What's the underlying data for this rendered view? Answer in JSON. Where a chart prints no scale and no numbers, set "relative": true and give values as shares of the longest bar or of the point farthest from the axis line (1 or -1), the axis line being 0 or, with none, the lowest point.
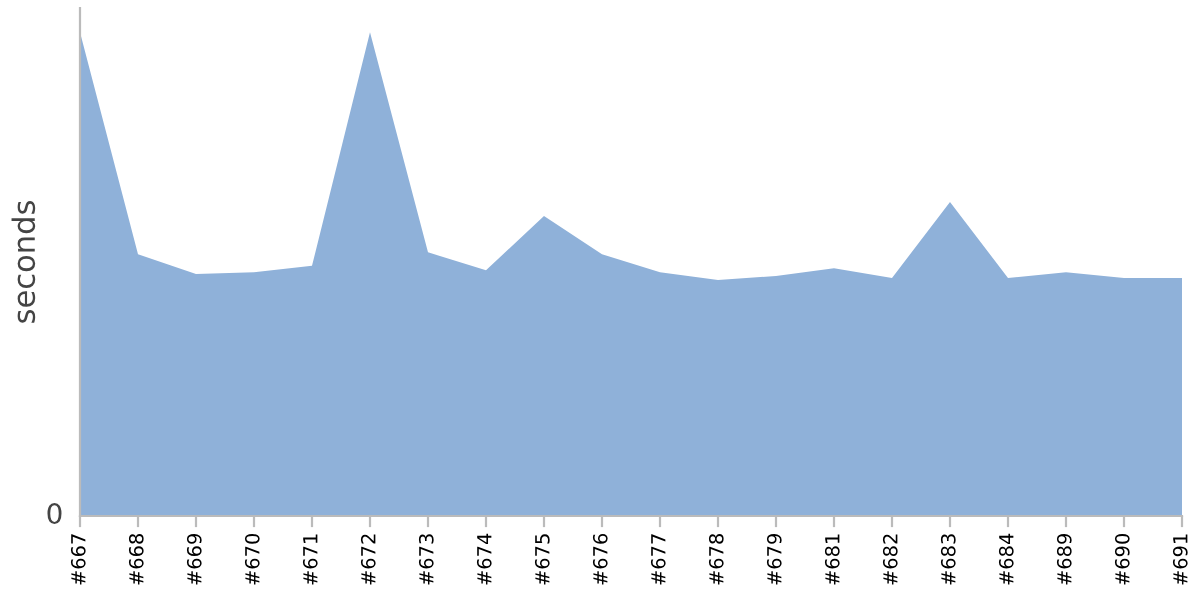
{
  "chart_data": {
    "type": "area",
    "relative": true,
    "ylabel": "seconds",
    "color": "#8fb1d9",
    "annotations": [
      "0"
    ],
    "grid": false,
    "legend": false,
    "categories": [
      "#667",
      "#668",
      "#669",
      "#670",
      "#671",
      "#672",
      "#673",
      "#674",
      "#675",
      "#676",
      "#677",
      "#678",
      "#679",
      "#681",
      "#682",
      "#683",
      "#684",
      "#689",
      "#690",
      "#691"
    ],
    "values": [
      1.0,
      0.541,
      0.5,
      0.504,
      0.517,
      1.0,
      0.545,
      0.508,
      0.62,
      0.541,
      0.504,
      0.488,
      0.496,
      0.512,
      0.492,
      0.649,
      0.492,
      0.504,
      0.492,
      0.492
    ]
  }
}
